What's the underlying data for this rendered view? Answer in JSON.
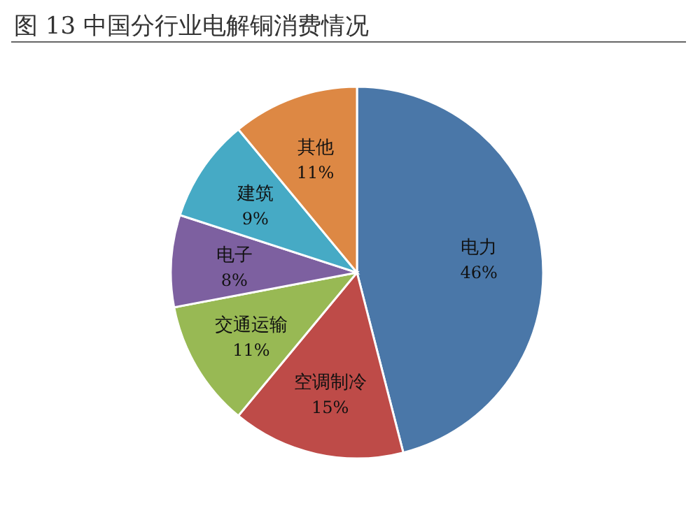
{
  "chart_data": {
    "type": "pie",
    "title": "图 13   中国分行业电解铜消费情况",
    "categories": [
      "电力",
      "空调制冷",
      "交通运输",
      "电子",
      "建筑",
      "其他"
    ],
    "values": [
      46,
      15,
      11,
      8,
      9,
      11
    ],
    "value_labels": [
      "46%",
      "15%",
      "11%",
      "8%",
      "9%",
      "11%"
    ],
    "colors": [
      "#4a77a8",
      "#be4b48",
      "#98b954",
      "#7d60a0",
      "#46aac5",
      "#dd8844"
    ]
  }
}
